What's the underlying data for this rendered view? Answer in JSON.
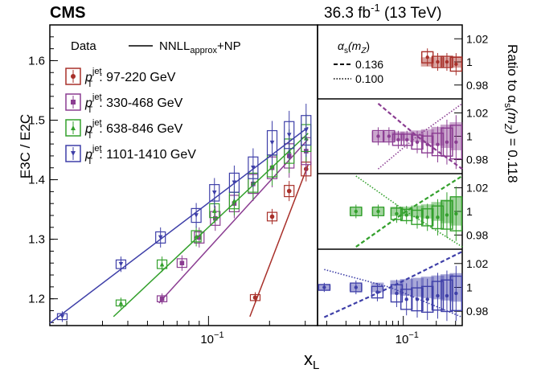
{
  "header": {
    "experiment": "CMS",
    "lumi": "36.3 fb",
    "lumi_sup": "-1",
    "energy": " (13 TeV)"
  },
  "chart_data": [
    {
      "type": "scatter",
      "panel": "main",
      "ylabel": "E3C / E2C",
      "xlabel": "x",
      "xlabel_sub": "L",
      "xscale": "log",
      "xlim": [
        0.0165,
        0.345
      ],
      "ylim": [
        1.155,
        1.66
      ],
      "xtick_labels": [
        "10"
      ],
      "xtick_sup": "−1",
      "ytick_labels": [
        "1.2",
        "1.3",
        "1.4",
        "1.5",
        "1.6"
      ],
      "legend": {
        "data_label": "Data",
        "theory_label_main": "NNLL",
        "theory_label_sub": "approx",
        "theory_label_tail": "+NP"
      },
      "series": [
        {
          "name_head": "p",
          "name_sub": "T",
          "name_sup": "jet",
          "name_tail": ": 97-220 GeV",
          "color": "#a8302a",
          "marker": "circle",
          "x": [
            0.17,
            0.206,
            0.25,
            0.303
          ],
          "y": [
            1.202,
            1.338,
            1.381,
            1.418
          ],
          "fit": {
            "x": [
              0.16,
              0.31
            ],
            "y": [
              1.17,
              1.425
            ]
          }
        },
        {
          "name_head": "p",
          "name_sub": "T",
          "name_sup": "jet",
          "name_tail": ": 330-468 GeV",
          "color": "#8b3d92",
          "marker": "square",
          "x": [
            0.059,
            0.074,
            0.09,
            0.108,
            0.134,
            0.166,
            0.206,
            0.25,
            0.303
          ],
          "y": [
            1.2,
            1.26,
            1.303,
            1.335,
            1.36,
            1.393,
            1.42,
            1.44,
            1.448
          ],
          "fit": {
            "x": [
              0.057,
              0.31
            ],
            "y": [
              1.193,
              1.468
            ]
          }
        },
        {
          "name_head": "p",
          "name_sub": "T",
          "name_sup": "jet",
          "name_tail": ": 638-846 GeV",
          "color": "#33a02c",
          "marker": "triangle-up",
          "x": [
            0.037,
            0.059,
            0.087,
            0.107,
            0.134,
            0.166,
            0.206,
            0.25,
            0.303
          ],
          "y": [
            1.193,
            1.258,
            1.305,
            1.348,
            1.365,
            1.395,
            1.423,
            1.448,
            1.47
          ],
          "fit": {
            "x": [
              0.034,
              0.31
            ],
            "y": [
              1.17,
              1.478
            ]
          }
        },
        {
          "name_head": "p",
          "name_sub": "T",
          "name_sup": "jet",
          "name_tail": ": 1101-1410 GeV",
          "color": "#3e3fa8",
          "marker": "triangle-down",
          "x": [
            0.019,
            0.037,
            0.058,
            0.087,
            0.107,
            0.134,
            0.166,
            0.206,
            0.25,
            0.303
          ],
          "y": [
            1.17,
            1.258,
            1.303,
            1.34,
            1.378,
            1.395,
            1.42,
            1.462,
            1.475,
            1.483
          ],
          "fit": {
            "x": [
              0.0165,
              0.31
            ],
            "y": [
              1.159,
              1.488
            ]
          }
        }
      ]
    },
    {
      "type": "ratio",
      "panels_ylabel": "Ratio to α",
      "panels_ylabel_sub": "s",
      "panels_ylabel_tail": "(m",
      "panels_ylabel_sub2": "Z",
      "panels_ylabel_end": ") = 0.118",
      "ytick_labels": [
        "1.02",
        "1",
        "0.98"
      ],
      "ylim": [
        0.968,
        1.032
      ],
      "xlim": [
        0.0165,
        0.345
      ],
      "legend": {
        "title": "α",
        "title_sub": "s",
        "title_tail": "(m",
        "title_sub2": "Z",
        "title_end": ")",
        "entries": [
          {
            "label": "0.136",
            "style": "dashed"
          },
          {
            "label": "0.100",
            "style": "dotted"
          }
        ]
      },
      "panels": [
        {
          "color": "#a8302a",
          "x": [
            0.166,
            0.206,
            0.25,
            0.303
          ],
          "y": [
            1.004,
            1.0,
            1.0,
            0.998
          ],
          "band": [
            0.004,
            0.004,
            0.004,
            0.005
          ]
        },
        {
          "color": "#8b3d92",
          "x": [
            0.059,
            0.074,
            0.09,
            0.108,
            0.134,
            0.166,
            0.206,
            0.25,
            0.303
          ],
          "y": [
            1.0,
            1.0,
            0.997,
            0.997,
            0.995,
            0.993,
            0.993,
            0.995,
            0.995
          ],
          "band": [
            0.004,
            0.004,
            0.004,
            0.004,
            0.005,
            0.006,
            0.008,
            0.01,
            0.012
          ],
          "line_136": [
            1.028,
            1.0,
            0.972
          ],
          "line_100": [
            0.972,
            1.0,
            1.028
          ]
        },
        {
          "color": "#33a02c",
          "x": [
            0.037,
            0.059,
            0.087,
            0.107,
            0.134,
            0.166,
            0.206,
            0.25,
            0.303
          ],
          "y": [
            1.0,
            1.0,
            0.998,
            0.997,
            0.995,
            0.995,
            0.995,
            0.997,
            0.998
          ],
          "band": [
            0.003,
            0.003,
            0.004,
            0.004,
            0.005,
            0.006,
            0.008,
            0.01,
            0.012
          ],
          "line_136": [
            0.97,
            1.0,
            1.03
          ],
          "line_100": [
            1.03,
            1.0,
            0.97
          ]
        },
        {
          "color": "#3e3fa8",
          "x": [
            0.019,
            0.037,
            0.058,
            0.087,
            0.107,
            0.134,
            0.166,
            0.206,
            0.25,
            0.303
          ],
          "y": [
            1.0,
            1.0,
            0.996,
            0.995,
            0.99,
            0.99,
            0.99,
            0.993,
            0.993,
            0.995
          ],
          "band": [
            0.002,
            0.003,
            0.004,
            0.006,
            0.007,
            0.008,
            0.009,
            0.01,
            0.011,
            0.012
          ],
          "line_136": [
            0.975,
            1.0,
            1.03
          ],
          "line_100": [
            1.015,
            1.0,
            0.975
          ]
        }
      ]
    }
  ]
}
